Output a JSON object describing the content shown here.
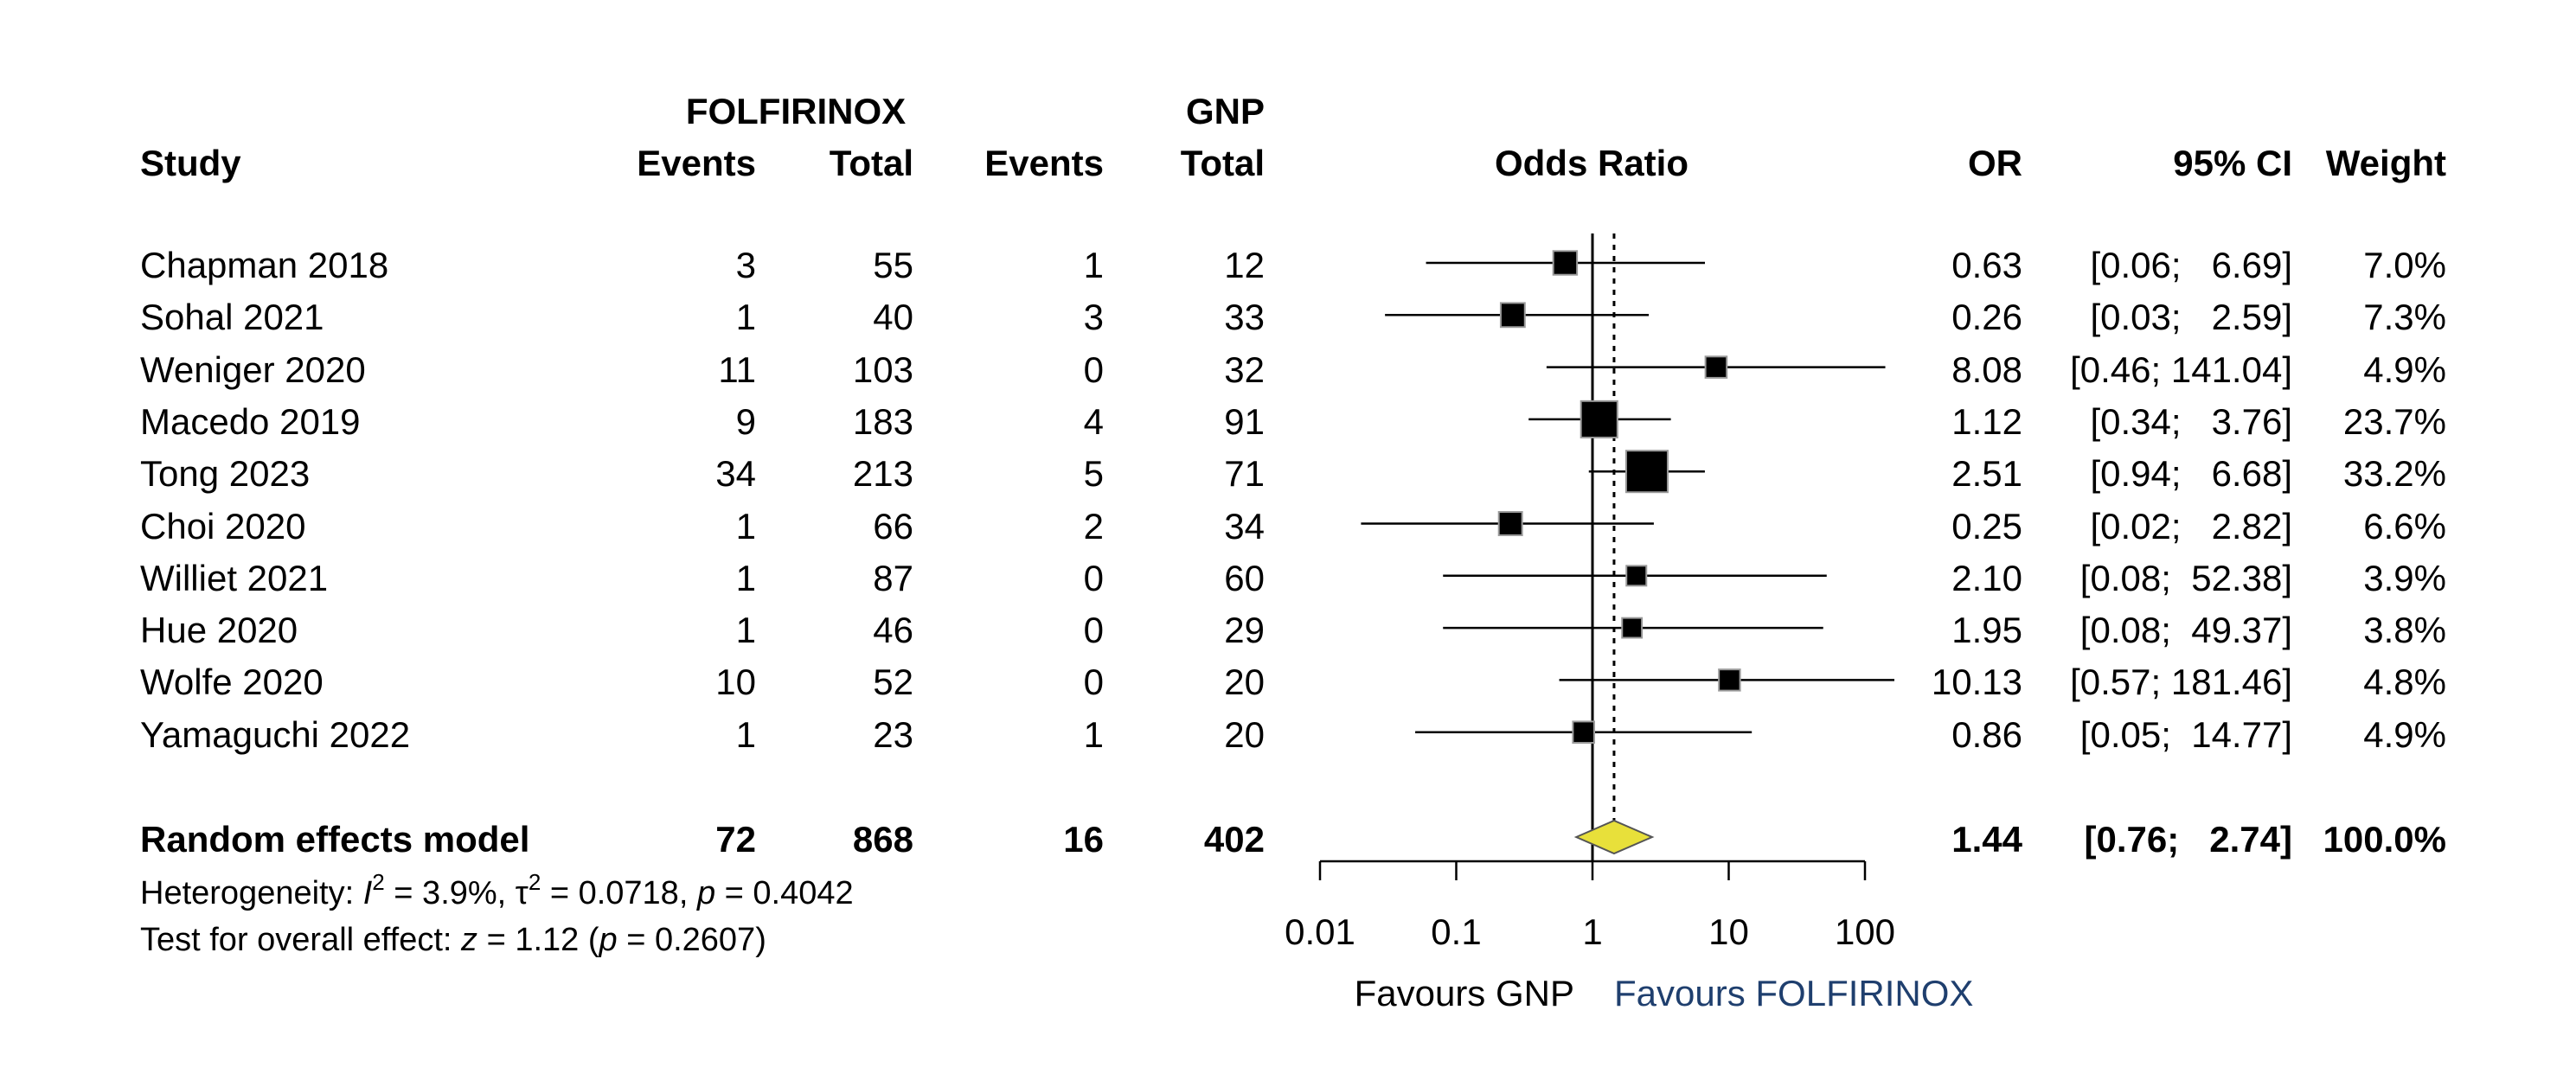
{
  "headers": {
    "study": "Study",
    "group1": "FOLFIRINOX",
    "group2": "GNP",
    "events": "Events",
    "total": "Total",
    "odds_ratio": "Odds Ratio",
    "or": "OR",
    "ci": "95% CI",
    "weight": "Weight"
  },
  "studies": [
    {
      "name": "Chapman 2018",
      "e1": "3",
      "t1": "55",
      "e2": "1",
      "t2": "12",
      "or_text": "0.63",
      "ci_text": "[0.06;   6.69]",
      "weight": "7.0%"
    },
    {
      "name": "Sohal 2021",
      "e1": "1",
      "t1": "40",
      "e2": "3",
      "t2": "33",
      "or_text": "0.26",
      "ci_text": "[0.03;   2.59]",
      "weight": "7.3%"
    },
    {
      "name": "Weniger 2020",
      "e1": "11",
      "t1": "103",
      "e2": "0",
      "t2": "32",
      "or_text": "8.08",
      "ci_text": "[0.46; 141.04]",
      "weight": "4.9%"
    },
    {
      "name": "Macedo 2019",
      "e1": "9",
      "t1": "183",
      "e2": "4",
      "t2": "91",
      "or_text": "1.12",
      "ci_text": "[0.34;   3.76]",
      "weight": "23.7%"
    },
    {
      "name": "Tong 2023",
      "e1": "34",
      "t1": "213",
      "e2": "5",
      "t2": "71",
      "or_text": "2.51",
      "ci_text": "[0.94;   6.68]",
      "weight": "33.2%"
    },
    {
      "name": "Choi 2020",
      "e1": "1",
      "t1": "66",
      "e2": "2",
      "t2": "34",
      "or_text": "0.25",
      "ci_text": "[0.02;   2.82]",
      "weight": "6.6%"
    },
    {
      "name": "Williet 2021",
      "e1": "1",
      "t1": "87",
      "e2": "0",
      "t2": "60",
      "or_text": "2.10",
      "ci_text": "[0.08;  52.38]",
      "weight": "3.9%"
    },
    {
      "name": "Hue 2020",
      "e1": "1",
      "t1": "46",
      "e2": "0",
      "t2": "29",
      "or_text": "1.95",
      "ci_text": "[0.08;  49.37]",
      "weight": "3.8%"
    },
    {
      "name": "Wolfe 2020",
      "e1": "10",
      "t1": "52",
      "e2": "0",
      "t2": "20",
      "or_text": "10.13",
      "ci_text": "[0.57; 181.46]",
      "weight": "4.8%"
    },
    {
      "name": "Yamaguchi 2022",
      "e1": "1",
      "t1": "23",
      "e2": "1",
      "t2": "20",
      "or_text": "0.86",
      "ci_text": "[0.05;  14.77]",
      "weight": "4.9%"
    }
  ],
  "summary": {
    "name": "Random effects model",
    "e1": "72",
    "t1": "868",
    "e2": "16",
    "t2": "402",
    "or_text": "1.44",
    "ci_text": "[0.76;   2.74]",
    "weight": "100.0%"
  },
  "heterogeneity": {
    "prefix": "Heterogeneity: ",
    "i2_symbol": "I",
    "i2_value": " = 3.9%, ",
    "tau_symbol": "τ",
    "tau_value": " = 0.0718, ",
    "p_symbol": "p",
    "p_value": " = 0.4042"
  },
  "overall_test": {
    "prefix": "Test for overall effect: ",
    "z_symbol": "z",
    "z_value": " = 1.12 (",
    "p_symbol": "p",
    "p_value": " = 0.2607)"
  },
  "favours": {
    "left": "Favours GNP",
    "right": "Favours FOLFIRINOX",
    "right_color": "#1f3f6e"
  },
  "chart_data": {
    "type": "forest",
    "scale": "log",
    "xlim": [
      0.01,
      100
    ],
    "ticks": [
      0.01,
      0.1,
      1,
      10,
      100
    ],
    "tick_labels": [
      "0.01",
      "0.1",
      "1",
      "10",
      "100"
    ],
    "reference_line": 1,
    "summary_line": 1.44,
    "studies": [
      {
        "or": 0.63,
        "lower": 0.06,
        "upper": 6.69,
        "weight": 7.0
      },
      {
        "or": 0.26,
        "lower": 0.03,
        "upper": 2.59,
        "weight": 7.3
      },
      {
        "or": 8.08,
        "lower": 0.46,
        "upper": 141.04,
        "weight": 4.9
      },
      {
        "or": 1.12,
        "lower": 0.34,
        "upper": 3.76,
        "weight": 23.7
      },
      {
        "or": 2.51,
        "lower": 0.94,
        "upper": 6.68,
        "weight": 33.2
      },
      {
        "or": 0.25,
        "lower": 0.02,
        "upper": 2.82,
        "weight": 6.6
      },
      {
        "or": 2.1,
        "lower": 0.08,
        "upper": 52.38,
        "weight": 3.9
      },
      {
        "or": 1.95,
        "lower": 0.08,
        "upper": 49.37,
        "weight": 3.8
      },
      {
        "or": 10.13,
        "lower": 0.57,
        "upper": 181.46,
        "weight": 4.8
      },
      {
        "or": 0.86,
        "lower": 0.05,
        "upper": 14.77,
        "weight": 4.9
      }
    ],
    "summary": {
      "or": 1.44,
      "lower": 0.76,
      "upper": 2.74
    },
    "diamond_color": "#e8e03a",
    "square_color": "#000000",
    "square_border_color": "#9a9a9a"
  }
}
